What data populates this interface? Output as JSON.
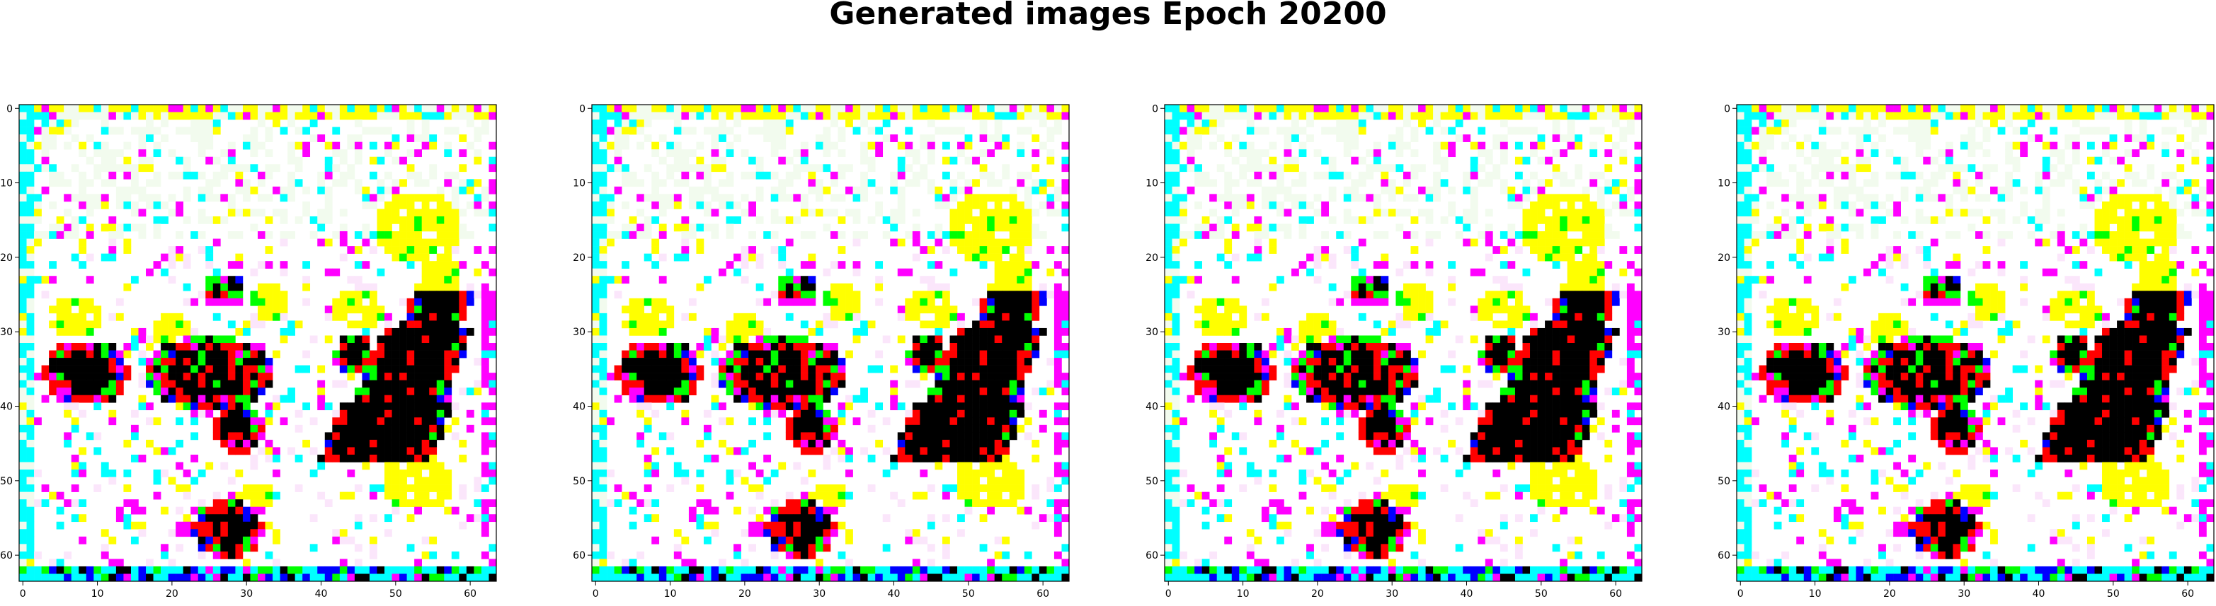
{
  "title": "Generated images Epoch 20200",
  "grid_size": 64,
  "x_ticks": [
    "0",
    "10",
    "20",
    "30",
    "40",
    "50",
    "60"
  ],
  "y_ticks": [
    "0",
    "10",
    "20",
    "30",
    "40",
    "50",
    "60"
  ],
  "tick_values": [
    0,
    10,
    20,
    30,
    40,
    50,
    60
  ],
  "panels": [
    {
      "name": "generated-image-1"
    },
    {
      "name": "generated-image-2"
    },
    {
      "name": "generated-image-3"
    },
    {
      "name": "generated-image-4"
    }
  ],
  "palette": {
    "white": "#ffffff",
    "pale": "#f2fbee",
    "yellow": "#ffff00",
    "cyan": "#00ffff",
    "magenta": "#ff00ff",
    "red": "#ff0000",
    "green": "#00ff00",
    "blue": "#0000ff",
    "black": "#000000"
  }
}
